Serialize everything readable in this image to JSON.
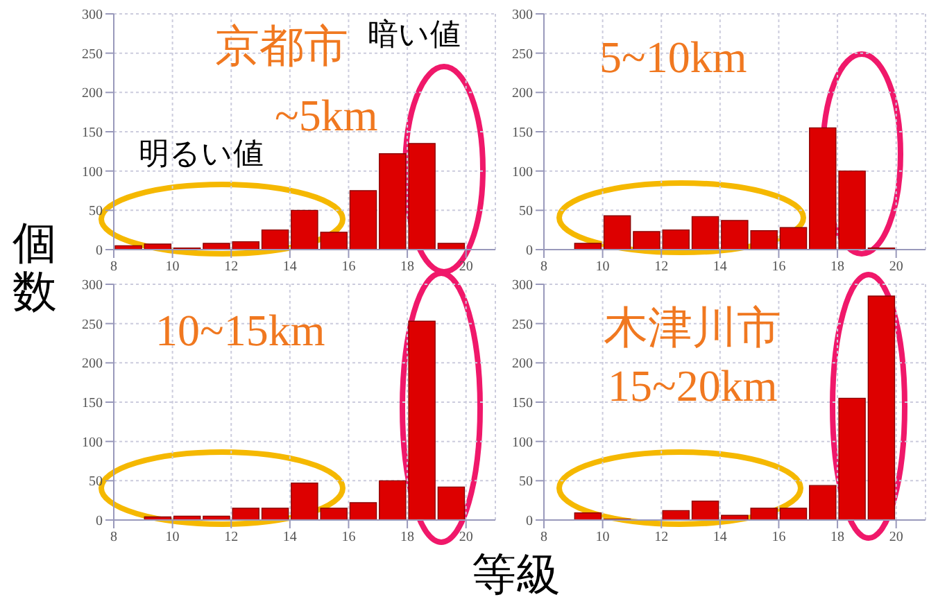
{
  "chart_data": [
    {
      "type": "histogram",
      "bins": [
        8,
        9,
        10,
        11,
        12,
        13,
        14,
        15,
        16,
        17,
        18,
        19,
        20
      ],
      "values": [
        5,
        7,
        2,
        8,
        10,
        25,
        50,
        22,
        75,
        122,
        135,
        8
      ],
      "color": "#dd0000",
      "xlim": [
        8,
        21
      ],
      "xticks": [
        8,
        10,
        12,
        14,
        16,
        18,
        20
      ],
      "ylim": [
        0,
        300
      ],
      "yticks": [
        0,
        50,
        100,
        150,
        200,
        250,
        300
      ],
      "grid": true,
      "ylabel": "個数",
      "annotations": [
        "京都市",
        "~5km",
        "明るい値",
        "暗い値"
      ]
    },
    {
      "type": "histogram",
      "bins": [
        8,
        9,
        10,
        11,
        12,
        13,
        14,
        15,
        16,
        17,
        18,
        19,
        20
      ],
      "values": [
        0,
        8,
        43,
        23,
        25,
        42,
        37,
        24,
        28,
        155,
        100,
        2
      ],
      "color": "#dd0000",
      "xlim": [
        8,
        21
      ],
      "xticks": [
        8,
        10,
        12,
        14,
        16,
        18,
        20
      ],
      "ylim": [
        0,
        300
      ],
      "yticks": [
        0,
        50,
        100,
        150,
        200,
        250,
        300
      ],
      "grid": true,
      "annotations": [
        "5~10km"
      ]
    },
    {
      "type": "histogram",
      "bins": [
        8,
        9,
        10,
        11,
        12,
        13,
        14,
        15,
        16,
        17,
        18,
        19,
        20
      ],
      "values": [
        0,
        4,
        5,
        5,
        15,
        15,
        47,
        15,
        22,
        50,
        253,
        42
      ],
      "color": "#dd0000",
      "xlim": [
        8,
        21
      ],
      "xticks": [
        8,
        10,
        12,
        14,
        16,
        18,
        20
      ],
      "ylim": [
        0,
        300
      ],
      "yticks": [
        0,
        50,
        100,
        150,
        200,
        250,
        300
      ],
      "grid": true,
      "xlabel": "等級",
      "annotations": [
        "10~15km"
      ]
    },
    {
      "type": "histogram",
      "bins": [
        8,
        9,
        10,
        11,
        12,
        13,
        14,
        15,
        16,
        17,
        18,
        19,
        20
      ],
      "values": [
        0,
        9,
        1,
        0,
        12,
        24,
        6,
        15,
        15,
        44,
        155,
        285
      ],
      "color": "#dd0000",
      "xlim": [
        8,
        21
      ],
      "xticks": [
        8,
        10,
        12,
        14,
        16,
        18,
        20
      ],
      "ylim": [
        0,
        300
      ],
      "yticks": [
        0,
        50,
        100,
        150,
        200,
        250,
        300
      ],
      "grid": true,
      "annotations": [
        "木津川市",
        "15~20km"
      ]
    }
  ]
}
